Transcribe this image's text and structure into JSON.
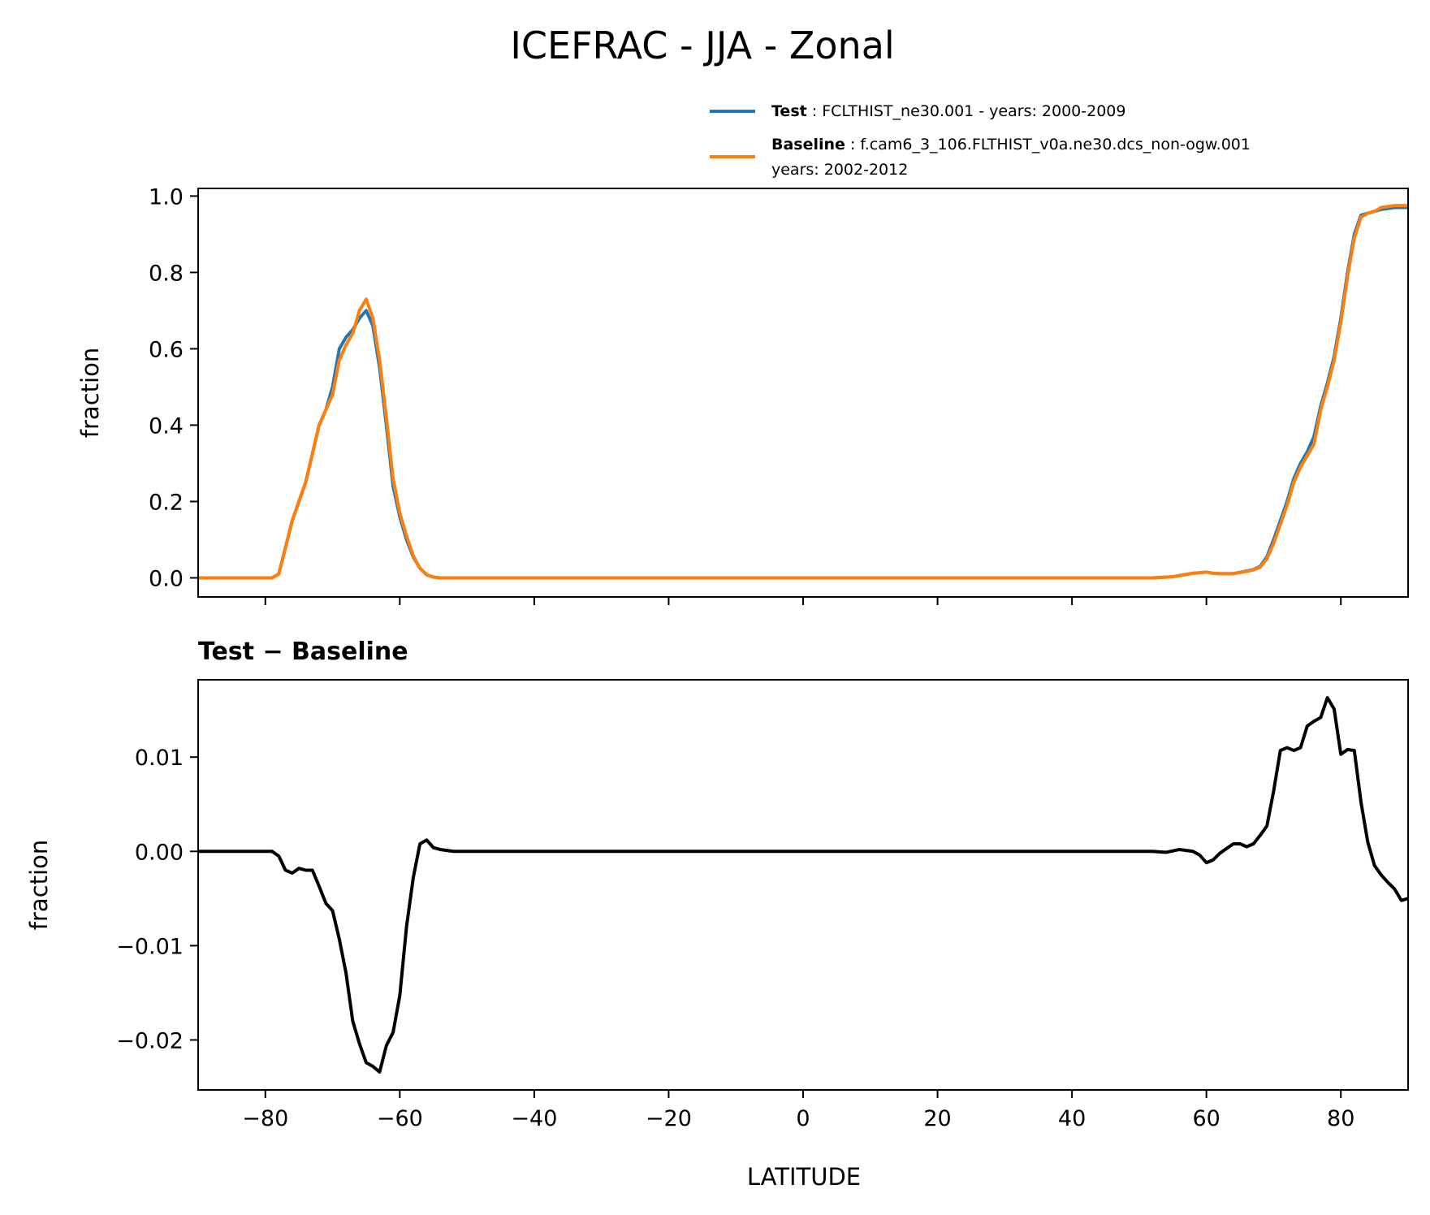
{
  "figure": {
    "title": "ICEFRAC - JJA - Zonal",
    "xlabel": "LATITUDE"
  },
  "legend": {
    "test": {
      "name": "Test",
      "separator": " : ",
      "desc": "FCLTHIST_ne30.001 - years: 2000-2009",
      "color": "#1f77b4"
    },
    "baseline": {
      "name": "Baseline",
      "separator": " : ",
      "desc": "f.cam6_3_106.FLTHIST_v0a.ne30.dcs_non-ogw.001",
      "desc2": "years: 2002-2012",
      "color": "#ff7f0e"
    }
  },
  "chart_data": [
    {
      "type": "line",
      "title": "",
      "xlabel": "",
      "ylabel": "fraction",
      "xlim": [
        -90,
        90
      ],
      "ylim": [
        -0.05,
        1.02
      ],
      "xticks": [
        -80,
        -60,
        -40,
        -20,
        0,
        20,
        40,
        60,
        80
      ],
      "yticks": [
        0.0,
        0.2,
        0.4,
        0.6,
        0.8,
        1.0
      ],
      "ytick_labels": [
        "0.0",
        "0.2",
        "0.4",
        "0.6",
        "0.8",
        "1.0"
      ],
      "grid": false,
      "legend_position": "above-right",
      "series": [
        {
          "name": "Test",
          "color": "#1f77b4",
          "x": [
            -90,
            -79,
            -78,
            -76,
            -74,
            -72,
            -71,
            -70,
            -69,
            -68,
            -67,
            -66,
            -65,
            -64,
            -63,
            -62,
            -61,
            -60,
            -59,
            -58,
            -57,
            -56,
            -55,
            -54,
            -52,
            -50,
            -40,
            -20,
            0,
            20,
            40,
            50,
            52,
            55,
            58,
            60,
            61,
            62,
            64,
            66,
            67,
            68,
            69,
            70,
            71,
            72,
            73,
            74,
            75,
            76,
            77,
            78,
            79,
            80,
            81,
            82,
            83,
            84,
            85,
            86,
            88,
            90
          ],
          "y": [
            0,
            0,
            0.01,
            0.15,
            0.25,
            0.4,
            0.44,
            0.5,
            0.6,
            0.63,
            0.65,
            0.68,
            0.7,
            0.66,
            0.55,
            0.4,
            0.24,
            0.16,
            0.1,
            0.055,
            0.025,
            0.008,
            0.002,
            0,
            0,
            0,
            0,
            0,
            0,
            0,
            0,
            0,
            0,
            0.003,
            0.012,
            0.015,
            0.012,
            0.011,
            0.011,
            0.018,
            0.022,
            0.03,
            0.055,
            0.1,
            0.15,
            0.2,
            0.26,
            0.3,
            0.33,
            0.37,
            0.45,
            0.51,
            0.58,
            0.68,
            0.8,
            0.9,
            0.95,
            0.955,
            0.96,
            0.965,
            0.97,
            0.97
          ]
        },
        {
          "name": "Baseline",
          "color": "#ff7f0e",
          "x": [
            -90,
            -79,
            -78,
            -76,
            -74,
            -72,
            -71,
            -70,
            -69,
            -68,
            -67,
            -66,
            -65,
            -64,
            -63,
            -62,
            -61,
            -60,
            -59,
            -58,
            -57,
            -56,
            -55,
            -54,
            -52,
            -50,
            -40,
            -20,
            0,
            20,
            40,
            50,
            52,
            55,
            58,
            60,
            61,
            62,
            64,
            66,
            67,
            68,
            69,
            70,
            71,
            72,
            73,
            74,
            75,
            76,
            77,
            78,
            79,
            80,
            81,
            82,
            83,
            84,
            85,
            86,
            88,
            90
          ],
          "y": [
            0,
            0,
            0.01,
            0.15,
            0.25,
            0.4,
            0.44,
            0.48,
            0.57,
            0.61,
            0.64,
            0.7,
            0.73,
            0.68,
            0.57,
            0.42,
            0.26,
            0.17,
            0.11,
            0.058,
            0.025,
            0.008,
            0.002,
            0,
            0,
            0,
            0,
            0,
            0,
            0,
            0,
            0,
            0,
            0.003,
            0.012,
            0.015,
            0.012,
            0.011,
            0.011,
            0.017,
            0.021,
            0.028,
            0.05,
            0.09,
            0.14,
            0.19,
            0.25,
            0.29,
            0.32,
            0.35,
            0.44,
            0.5,
            0.57,
            0.67,
            0.79,
            0.89,
            0.945,
            0.955,
            0.96,
            0.97,
            0.975,
            0.975
          ]
        }
      ]
    },
    {
      "type": "line",
      "title": "Test − Baseline",
      "xlabel": "LATITUDE",
      "ylabel": "fraction",
      "xlim": [
        -90,
        90
      ],
      "ylim": [
        -0.0253,
        0.0182
      ],
      "xticks": [
        -80,
        -60,
        -40,
        -20,
        0,
        20,
        40,
        60,
        80
      ],
      "xtick_labels": [
        "−80",
        "−60",
        "−40",
        "−20",
        "0",
        "20",
        "40",
        "60",
        "80"
      ],
      "yticks": [
        -0.02,
        -0.01,
        0.0,
        0.01
      ],
      "ytick_labels": [
        "−0.02",
        "−0.01",
        "0.00",
        "0.01"
      ],
      "grid": false,
      "series": [
        {
          "name": "",
          "color": "#000000",
          "x": [
            -90,
            -79,
            -78,
            -77,
            -76,
            -75,
            -74,
            -73,
            -72,
            -71,
            -70,
            -69,
            -68,
            -67,
            -66,
            -65,
            -64,
            -63,
            -62,
            -61,
            -60,
            -59,
            -58,
            -57,
            -56,
            -55,
            -54,
            -52,
            -50,
            -40,
            -20,
            0,
            20,
            40,
            50,
            52,
            54,
            56,
            58,
            59,
            60,
            61,
            62,
            63,
            64,
            65,
            66,
            67,
            68,
            69,
            70,
            71,
            72,
            73,
            74,
            75,
            76,
            77,
            78,
            79,
            80,
            81,
            82,
            83,
            84,
            85,
            86,
            87,
            88,
            89,
            90
          ],
          "y": [
            0,
            0,
            -0.0005,
            -0.002,
            -0.0023,
            -0.0018,
            -0.002,
            -0.002,
            -0.0037,
            -0.0055,
            -0.0063,
            -0.0093,
            -0.0129,
            -0.018,
            -0.0204,
            -0.0224,
            -0.0228,
            -0.0234,
            -0.0206,
            -0.0192,
            -0.0153,
            -0.008,
            -0.0028,
            0.0008,
            0.0012,
            0.0004,
            0.0002,
            0,
            0,
            0,
            0,
            0,
            0,
            0,
            0,
            0,
            -0.0001,
            0.0002,
            0,
            -0.0004,
            -0.0012,
            -0.0009,
            -0.0002,
            0.0003,
            0.0008,
            0.0008,
            0.0005,
            0.0008,
            0.0017,
            0.0027,
            0.0064,
            0.0107,
            0.011,
            0.0107,
            0.011,
            0.0133,
            0.0138,
            0.0142,
            0.0163,
            0.0151,
            0.0103,
            0.0108,
            0.0107,
            0.0052,
            0.001,
            -0.0015,
            -0.0025,
            -0.0033,
            -0.004,
            -0.0052,
            -0.005
          ]
        }
      ]
    }
  ]
}
